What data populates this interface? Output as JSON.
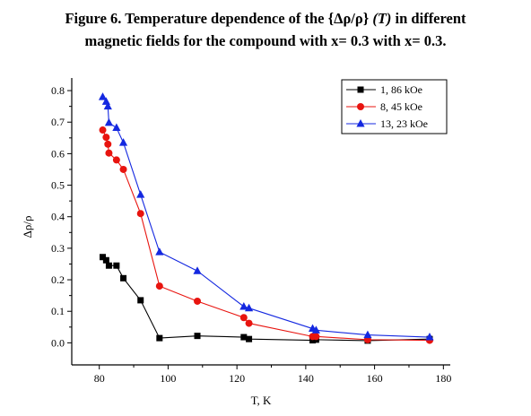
{
  "figure": {
    "title_line1_a": "Figure 6. Temperature dependence of  the {Δρ/ρ} ",
    "title_line1_b": "(T)",
    "title_line1_c": " in different",
    "title_line2": "magnetic fields for the compound with x= 0.3 with x= 0.3."
  },
  "chart_data": {
    "type": "line",
    "xlabel": "T, K",
    "ylabel": "Δρ/ρ",
    "xlim": [
      72,
      182
    ],
    "ylim": [
      -0.07,
      0.84
    ],
    "xticks": [
      80,
      100,
      120,
      140,
      160,
      180
    ],
    "yticks": [
      0.0,
      0.1,
      0.2,
      0.3,
      0.4,
      0.5,
      0.6,
      0.7,
      0.8
    ],
    "xtick_labels": [
      "80",
      "100",
      "120",
      "140",
      "160",
      "180"
    ],
    "ytick_labels": [
      "0.0",
      "0.1",
      "0.2",
      "0.3",
      "0.4",
      "0.5",
      "0.6",
      "0.7",
      "0.8"
    ],
    "grid": false,
    "legend": "top-right",
    "series": [
      {
        "name": "1, 86 kOe",
        "color": "#000000",
        "marker": "square",
        "x": [
          81.0,
          82.0,
          82.8,
          85.0,
          87.0,
          92.0,
          97.5,
          108.5,
          122.0,
          123.5,
          142.0,
          143.0,
          158.0,
          176.0
        ],
        "y": [
          0.272,
          0.262,
          0.245,
          0.245,
          0.205,
          0.135,
          0.015,
          0.022,
          0.018,
          0.012,
          0.008,
          0.01,
          0.007,
          0.012
        ]
      },
      {
        "name": "8, 45 kOe",
        "color": "#e8140f",
        "marker": "circle",
        "x": [
          81.0,
          82.0,
          82.5,
          82.8,
          85.0,
          87.0,
          92.0,
          97.5,
          108.5,
          122.0,
          123.5,
          142.0,
          143.0,
          158.0,
          176.0
        ],
        "y": [
          0.675,
          0.652,
          0.63,
          0.602,
          0.58,
          0.55,
          0.41,
          0.18,
          0.132,
          0.08,
          0.062,
          0.02,
          0.02,
          0.01,
          0.008
        ]
      },
      {
        "name": "13, 23 kOe",
        "color": "#1428e0",
        "marker": "triangle",
        "x": [
          81.0,
          82.0,
          82.5,
          82.8,
          85.0,
          87.0,
          92.0,
          97.5,
          108.5,
          122.0,
          123.5,
          142.0,
          143.0,
          158.0,
          176.0
        ],
        "y": [
          0.78,
          0.765,
          0.75,
          0.698,
          0.682,
          0.635,
          0.47,
          0.288,
          0.228,
          0.115,
          0.11,
          0.045,
          0.04,
          0.025,
          0.018
        ]
      }
    ]
  }
}
